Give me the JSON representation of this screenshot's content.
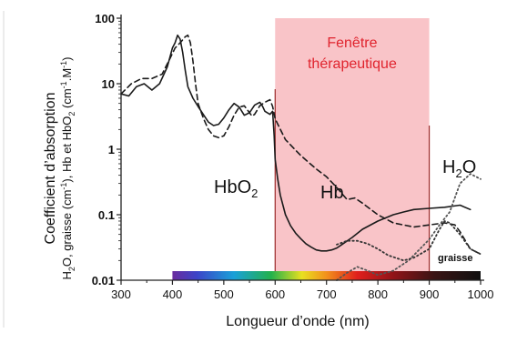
{
  "chart_data": {
    "type": "line",
    "xlabel": "Longueur d’onde (nm)",
    "ylabel_line1": "Coefficient d’absorption",
    "ylabel_line2": "H2O, graisse (cm-1), Hb et HbO2 (cm-1.M-1)",
    "xlim": [
      300,
      1000
    ],
    "ylim": [
      0.01,
      100
    ],
    "yscale": "log",
    "x_ticks": [
      300,
      400,
      500,
      600,
      700,
      800,
      900,
      1000
    ],
    "x_tick_labels": [
      "300",
      "400",
      "500",
      "600",
      "700",
      "800",
      "900",
      "1000"
    ],
    "y_ticks": [
      0.01,
      0.1,
      1,
      10,
      100
    ],
    "y_tick_labels": [
      "0.01",
      "0.1",
      "1",
      "10",
      "100"
    ],
    "grid": false,
    "window": {
      "range": [
        600,
        900
      ],
      "label_line1": "Fenêtre",
      "label_line2": "thérapeutique",
      "color": "#f9c4c8",
      "text_color": "#e0242e"
    },
    "spectrum_bar": {
      "range": [
        400,
        1000
      ]
    },
    "series": [
      {
        "name": "HbO2",
        "style": "solid",
        "color": "#1a1a1a",
        "x": [
          300,
          315,
          330,
          345,
          360,
          375,
          390,
          400,
          405,
          410,
          415,
          420,
          425,
          430,
          440,
          450,
          460,
          470,
          480,
          490,
          500,
          510,
          520,
          530,
          540,
          550,
          560,
          570,
          575,
          580,
          590,
          595,
          598,
          600,
          605,
          610,
          620,
          630,
          640,
          650,
          660,
          670,
          680,
          690,
          700,
          710,
          720,
          730,
          750,
          770,
          800,
          830,
          850,
          870,
          900,
          930,
          960,
          980
        ],
        "y": [
          7,
          6.5,
          9,
          10,
          8,
          10,
          18,
          35,
          42,
          55,
          48,
          30,
          16,
          9,
          6,
          4.5,
          3.4,
          2.6,
          2.3,
          2.4,
          3,
          4,
          5,
          4.4,
          3.3,
          3.6,
          4.7,
          5.2,
          4.6,
          3.8,
          3.4,
          3.8,
          1.6,
          0.7,
          0.35,
          0.2,
          0.1,
          0.068,
          0.052,
          0.043,
          0.036,
          0.032,
          0.029,
          0.028,
          0.028,
          0.029,
          0.031,
          0.035,
          0.045,
          0.06,
          0.08,
          0.1,
          0.11,
          0.12,
          0.125,
          0.13,
          0.14,
          0.12
        ]
      },
      {
        "name": "Hb",
        "style": "dashed",
        "color": "#1a1a1a",
        "x": [
          300,
          320,
          340,
          360,
          380,
          395,
          405,
          415,
          425,
          430,
          435,
          440,
          445,
          450,
          460,
          470,
          480,
          490,
          500,
          510,
          520,
          530,
          540,
          550,
          555,
          560,
          570,
          580,
          590,
          595,
          600,
          620,
          650,
          680,
          700,
          720,
          740,
          755,
          770,
          800,
          830,
          870,
          900,
          930,
          950,
          960,
          980,
          1000
        ],
        "y": [
          7,
          10,
          12,
          12,
          14,
          24,
          35,
          42,
          52,
          55,
          42,
          22,
          10,
          5,
          3,
          2,
          1.6,
          1.5,
          1.6,
          2.2,
          3.3,
          4.4,
          4.6,
          3.6,
          3.2,
          3.4,
          4.6,
          5.2,
          5.7,
          4.5,
          2.9,
          1.4,
          0.8,
          0.5,
          0.38,
          0.26,
          0.17,
          0.18,
          0.15,
          0.1,
          0.075,
          0.065,
          0.07,
          0.075,
          0.07,
          0.055,
          0.03,
          0.025
        ]
      },
      {
        "name": "H2O",
        "style": "dotted",
        "color": "#555555",
        "x": [
          720,
          740,
          760,
          780,
          800,
          830,
          860,
          900,
          920,
          940,
          960,
          980,
          1000
        ],
        "y": [
          0.01,
          0.013,
          0.016,
          0.014,
          0.012,
          0.014,
          0.02,
          0.042,
          0.07,
          0.11,
          0.3,
          0.42,
          0.35
        ]
      },
      {
        "name": "graisse",
        "style": "dotted",
        "color": "#333333",
        "x": [
          720,
          740,
          760,
          780,
          800,
          820,
          850,
          870,
          900,
          920,
          930,
          940,
          960,
          980,
          1000
        ],
        "y": [
          0.035,
          0.04,
          0.04,
          0.036,
          0.03,
          0.024,
          0.02,
          0.022,
          0.03,
          0.06,
          0.08,
          0.075,
          0.05,
          0.03,
          0.025
        ]
      }
    ],
    "annotations": [
      {
        "id": "hbo2",
        "base": "HbO",
        "sub": "2"
      },
      {
        "id": "hb",
        "text": "Hb"
      },
      {
        "id": "h2o",
        "base": "H",
        "sub": "2",
        "rest": "O"
      },
      {
        "id": "graisse",
        "text": "graisse"
      }
    ]
  }
}
